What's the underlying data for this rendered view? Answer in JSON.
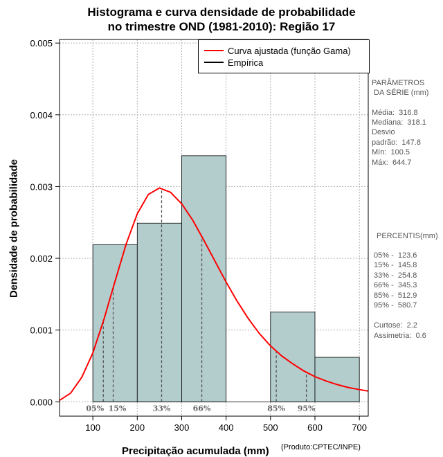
{
  "title_line1": "Histograma e curva densidade de probabilidade",
  "title_line2": "no trimestre OND (1981-2010): Região 17",
  "credit": "(Produto:CPTEC/INPE)",
  "legend": {
    "fitted_label": "Curva ajustada (função Gama)",
    "empirical_label": "Empírica",
    "fitted_color": "#ff0000",
    "empirical_color": "#000000"
  },
  "params": {
    "header1": "PARÂMETROS",
    "header2": "DA SÉRIE (mm)",
    "media": "Média:  316.8",
    "mediana": "Mediana:  318.1",
    "desvio1": "Desvio",
    "desvio2": "padrão:  147.8",
    "min": "Mín:  100.5",
    "max": "Máx:  644.7"
  },
  "percentis": {
    "header": "PERCENTIS(mm)",
    "p05": "05% -  123.6",
    "p15": "15% -  145.8",
    "p33": "33% -  254.8",
    "p66": "66% -  345.3",
    "p85": "85% -  512.9",
    "p95": "95% -  580.7",
    "curtose": "Curtose:  2.2",
    "assimetria": "Assimetria:  0.6"
  },
  "chart_data": {
    "type": "bar",
    "title": "Histograma e curva densidade de probabilidade no trimestre OND (1981-2010): Região 17",
    "xlabel": "Precipitação acumulada (mm)",
    "ylabel": "Densidade de probabilidade",
    "xlim": [
      25,
      720
    ],
    "ylim": [
      -0.0002,
      0.00505
    ],
    "x_ticks": [
      100,
      200,
      300,
      400,
      500,
      600,
      700
    ],
    "y_ticks": [
      0.0,
      0.001,
      0.002,
      0.003,
      0.004,
      0.005
    ],
    "y_tick_labels": [
      "0.000",
      "0.001",
      "0.002",
      "0.003",
      "0.004",
      "0.005"
    ],
    "grid": true,
    "bar_color": "#b3cccc",
    "histogram_bins": [
      {
        "from": 100,
        "to": 200,
        "density": 0.00219
      },
      {
        "from": 200,
        "to": 300,
        "density": 0.00249
      },
      {
        "from": 300,
        "to": 400,
        "density": 0.00343
      },
      {
        "from": 400,
        "to": 500,
        "density": 0.0
      },
      {
        "from": 500,
        "to": 600,
        "density": 0.00125
      },
      {
        "from": 600,
        "to": 700,
        "density": 0.00062
      }
    ],
    "fitted_curve": {
      "name": "Curva ajustada (função Gama)",
      "x": [
        25,
        50,
        75,
        100,
        125,
        150,
        175,
        200,
        225,
        250,
        275,
        300,
        325,
        350,
        375,
        400,
        425,
        450,
        475,
        500,
        525,
        550,
        575,
        600,
        625,
        650,
        675,
        700,
        720
      ],
      "y": [
        2e-05,
        0.00012,
        0.00034,
        0.00068,
        0.00115,
        0.00168,
        0.0022,
        0.00262,
        0.00289,
        0.00298,
        0.00292,
        0.00276,
        0.00253,
        0.00225,
        0.00196,
        0.00167,
        0.0014,
        0.00116,
        0.00095,
        0.00078,
        0.00064,
        0.00053,
        0.00043,
        0.00035,
        0.00029,
        0.00024,
        0.0002,
        0.00017,
        0.00015
      ]
    },
    "percentile_markers": [
      {
        "label": "05%",
        "value": 123.6
      },
      {
        "label": "15%",
        "value": 145.8
      },
      {
        "label": "33%",
        "value": 254.8
      },
      {
        "label": "66%",
        "value": 345.3
      },
      {
        "label": "85%",
        "value": 512.9
      },
      {
        "label": "95%",
        "value": 580.7
      }
    ]
  }
}
